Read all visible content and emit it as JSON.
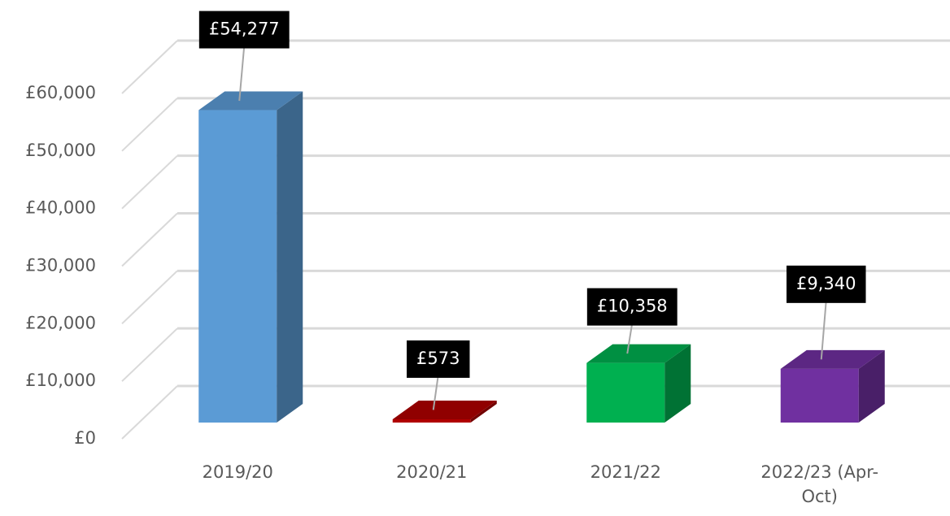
{
  "chart_data": {
    "type": "bar3d",
    "categories": [
      "2019/20",
      "2020/21",
      "2021/22",
      "2022/23 (Apr-Oct)"
    ],
    "values": [
      54277,
      573,
      10358,
      9340
    ],
    "value_labels": [
      "£54,277",
      "£573",
      "£10,358",
      "£9,340"
    ],
    "colors": [
      "#5b9bd5",
      "#b00000",
      "#00b050",
      "#7030a0"
    ],
    "ylim": [
      0,
      60000
    ],
    "yticks": [
      {
        "value": 0,
        "label": "£0"
      },
      {
        "value": 10000,
        "label": "£10,000"
      },
      {
        "value": 20000,
        "label": "£20,000"
      },
      {
        "value": 30000,
        "label": "£30,000"
      },
      {
        "value": 40000,
        "label": "£40,000"
      },
      {
        "value": 50000,
        "label": "£50,000"
      },
      {
        "value": 60000,
        "label": "£60,000"
      }
    ],
    "grid": true
  }
}
